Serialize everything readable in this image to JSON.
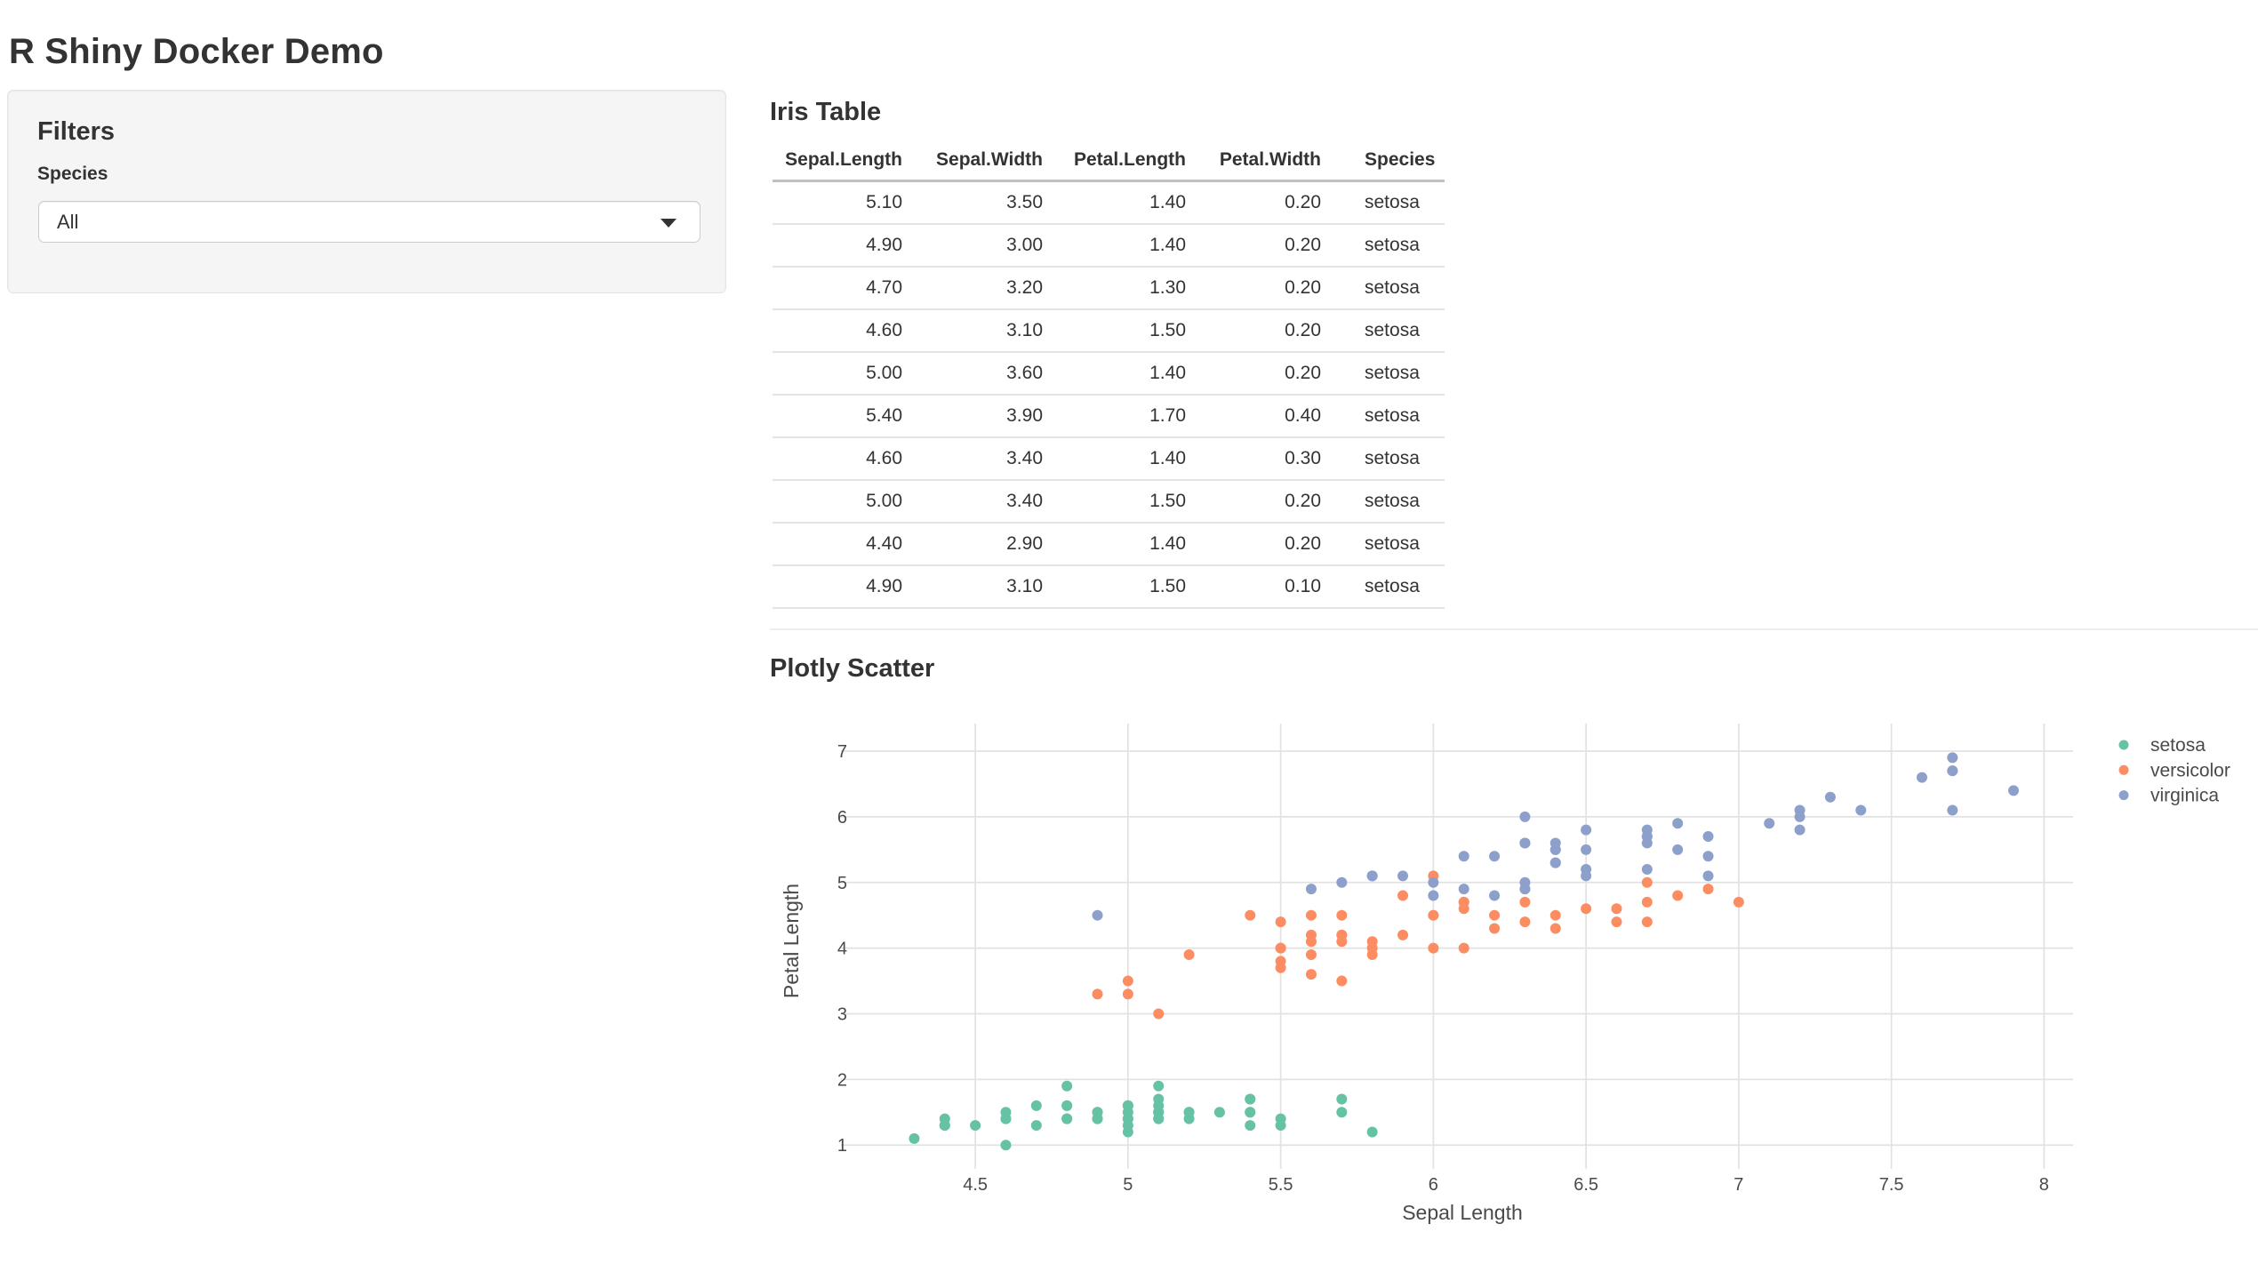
{
  "header": {
    "title": "R Shiny Docker Demo"
  },
  "filters": {
    "heading": "Filters",
    "species_label": "Species",
    "species_value": "All"
  },
  "iris_table": {
    "heading": "Iris Table",
    "columns": [
      "Sepal.Length",
      "Sepal.Width",
      "Petal.Length",
      "Petal.Width",
      "Species"
    ],
    "rows": [
      [
        "5.10",
        "3.50",
        "1.40",
        "0.20",
        "setosa"
      ],
      [
        "4.90",
        "3.00",
        "1.40",
        "0.20",
        "setosa"
      ],
      [
        "4.70",
        "3.20",
        "1.30",
        "0.20",
        "setosa"
      ],
      [
        "4.60",
        "3.10",
        "1.50",
        "0.20",
        "setosa"
      ],
      [
        "5.00",
        "3.60",
        "1.40",
        "0.20",
        "setosa"
      ],
      [
        "5.40",
        "3.90",
        "1.70",
        "0.40",
        "setosa"
      ],
      [
        "4.60",
        "3.40",
        "1.40",
        "0.30",
        "setosa"
      ],
      [
        "5.00",
        "3.40",
        "1.50",
        "0.20",
        "setosa"
      ],
      [
        "4.40",
        "2.90",
        "1.40",
        "0.20",
        "setosa"
      ],
      [
        "4.90",
        "3.10",
        "1.50",
        "0.10",
        "setosa"
      ]
    ]
  },
  "scatter_section": {
    "heading": "Plotly Scatter"
  },
  "chart_data": {
    "type": "scatter",
    "title": "",
    "xlabel": "Sepal Length",
    "ylabel": "Petal Length",
    "x_range": [
      4.095,
      8.095
    ],
    "y_range": [
      0.8,
      7.42
    ],
    "x_ticks": [
      4.5,
      5,
      5.5,
      6,
      6.5,
      7,
      7.5,
      8
    ],
    "x_tick_labels": [
      "4.5",
      "5",
      "5.5",
      "6",
      "6.5",
      "7",
      "7.5",
      "8"
    ],
    "y_ticks": [
      1,
      2,
      3,
      4,
      5,
      6,
      7
    ],
    "y_tick_labels": [
      "1",
      "2",
      "3",
      "4",
      "5",
      "6",
      "7"
    ],
    "grid": true,
    "legend_position": "right",
    "marker_size": 6,
    "grid_color": "#e2e2e2",
    "tick_label_color": "#4a4a4a",
    "series": [
      {
        "name": "setosa",
        "color": "#66c2a5",
        "x": [
          5.1,
          4.9,
          4.7,
          4.6,
          5.0,
          5.4,
          4.6,
          5.0,
          4.4,
          4.9,
          5.4,
          4.8,
          4.8,
          4.3,
          5.8,
          5.7,
          5.4,
          5.1,
          5.7,
          5.1,
          5.4,
          5.1,
          4.6,
          5.1,
          4.8,
          5.0,
          5.0,
          5.2,
          5.2,
          4.7,
          4.8,
          5.4,
          5.2,
          5.5,
          4.9,
          5.0,
          5.5,
          4.9,
          4.4,
          5.1,
          5.0,
          4.5,
          4.4,
          5.0,
          5.1,
          4.8,
          5.1,
          4.6,
          5.3,
          5.0
        ],
        "y": [
          1.4,
          1.4,
          1.3,
          1.5,
          1.4,
          1.7,
          1.4,
          1.5,
          1.4,
          1.5,
          1.5,
          1.6,
          1.4,
          1.1,
          1.2,
          1.5,
          1.3,
          1.4,
          1.7,
          1.5,
          1.7,
          1.5,
          1.0,
          1.7,
          1.9,
          1.6,
          1.6,
          1.5,
          1.4,
          1.6,
          1.6,
          1.5,
          1.5,
          1.4,
          1.5,
          1.2,
          1.3,
          1.4,
          1.3,
          1.5,
          1.3,
          1.3,
          1.3,
          1.6,
          1.9,
          1.4,
          1.6,
          1.4,
          1.5,
          1.4
        ]
      },
      {
        "name": "versicolor",
        "color": "#fc8d62",
        "x": [
          7.0,
          6.4,
          6.9,
          5.5,
          6.5,
          5.7,
          6.3,
          4.9,
          6.6,
          5.2,
          5.0,
          5.9,
          6.0,
          6.1,
          5.6,
          6.7,
          5.6,
          5.8,
          6.2,
          5.6,
          5.9,
          6.1,
          6.3,
          6.1,
          6.4,
          6.6,
          6.8,
          6.7,
          6.0,
          5.7,
          5.5,
          5.5,
          5.8,
          6.0,
          5.4,
          6.0,
          6.7,
          6.3,
          5.6,
          5.5,
          5.5,
          6.1,
          5.8,
          5.0,
          5.6,
          5.7,
          5.7,
          6.2,
          5.1,
          5.7
        ],
        "y": [
          4.7,
          4.5,
          4.9,
          4.0,
          4.6,
          4.5,
          4.7,
          3.3,
          4.6,
          3.9,
          3.5,
          4.2,
          4.0,
          4.7,
          3.6,
          4.4,
          4.5,
          4.1,
          4.5,
          3.9,
          4.8,
          4.0,
          4.9,
          4.7,
          4.3,
          4.4,
          4.8,
          5.0,
          4.5,
          3.5,
          3.8,
          3.7,
          3.9,
          5.1,
          4.5,
          4.5,
          4.7,
          4.4,
          4.1,
          4.0,
          4.4,
          4.6,
          4.0,
          3.3,
          4.2,
          4.2,
          4.2,
          4.3,
          3.0,
          4.1
        ]
      },
      {
        "name": "virginica",
        "color": "#8da0cb",
        "x": [
          6.3,
          5.8,
          7.1,
          6.3,
          6.5,
          7.6,
          4.9,
          7.3,
          6.7,
          7.2,
          6.5,
          6.4,
          6.8,
          5.7,
          5.8,
          6.4,
          6.5,
          7.7,
          7.7,
          6.0,
          6.9,
          5.6,
          7.7,
          6.3,
          6.7,
          7.2,
          6.2,
          6.1,
          6.4,
          7.2,
          7.4,
          7.9,
          6.4,
          6.3,
          6.1,
          7.7,
          6.3,
          6.4,
          6.0,
          6.9,
          6.7,
          6.9,
          5.8,
          6.8,
          6.7,
          6.7,
          6.3,
          6.5,
          6.2,
          5.9
        ],
        "y": [
          6.0,
          5.1,
          5.9,
          5.6,
          5.8,
          6.6,
          4.5,
          6.3,
          5.8,
          6.1,
          5.1,
          5.3,
          5.5,
          5.0,
          5.1,
          5.3,
          5.5,
          6.7,
          6.9,
          5.0,
          5.7,
          4.9,
          6.7,
          4.9,
          5.7,
          6.0,
          4.8,
          4.9,
          5.6,
          5.8,
          6.1,
          6.4,
          5.5,
          5.6,
          5.4,
          6.1,
          5.6,
          5.5,
          4.8,
          5.4,
          5.6,
          5.1,
          5.1,
          5.9,
          5.7,
          5.2,
          5.0,
          5.2,
          5.4,
          5.1
        ]
      }
    ]
  }
}
